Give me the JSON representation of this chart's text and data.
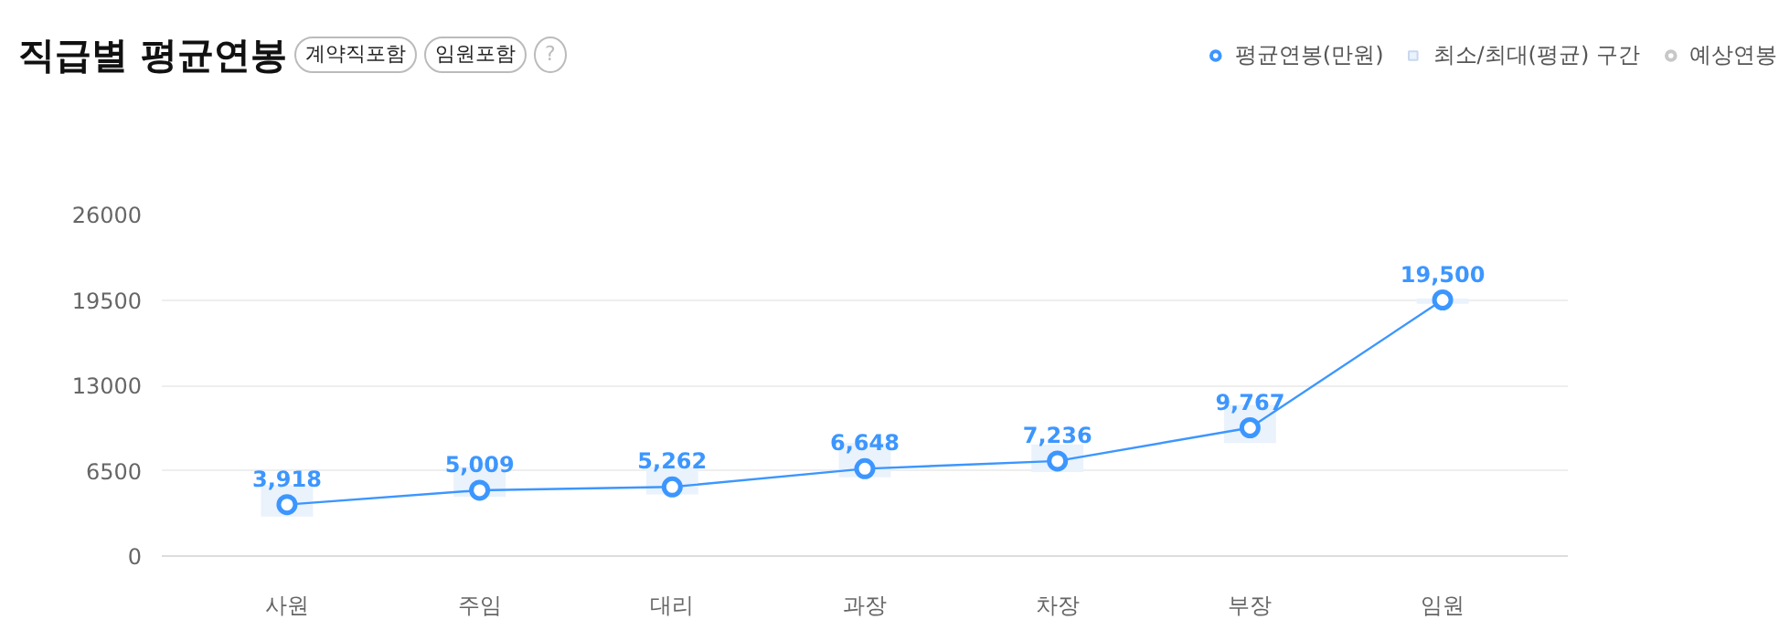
{
  "chart_data": {
    "type": "line",
    "title": "직급별 평균연봉",
    "annotations": [
      "계약직포함",
      "임원포함",
      "?"
    ],
    "categories": [
      "사원",
      "주임",
      "대리",
      "과장",
      "차장",
      "부장",
      "임원"
    ],
    "series": [
      {
        "name": "평균연봉(만원)",
        "color": "#3c96ff",
        "values": [
          3918,
          5009,
          5262,
          6648,
          7236,
          9767,
          19500
        ],
        "value_labels": [
          "3,918",
          "5,009",
          "5,262",
          "6,648",
          "7,236",
          "9,767",
          "19,500"
        ]
      },
      {
        "name": "최소/최대(평균) 구간",
        "type": "bar",
        "color": "#eaf2fc",
        "base": [
          3000,
          4500,
          4700,
          6000,
          6400,
          8600,
          19200
        ],
        "values": [
          2400,
          2300,
          2100,
          2600,
          2100,
          2900,
          400
        ]
      },
      {
        "name": "예상연봉",
        "color": "#c8c8c8",
        "values": [
          null,
          null,
          null,
          null,
          null,
          null,
          null
        ]
      }
    ],
    "ylim": [
      0,
      26000
    ],
    "yticks": [
      0,
      6500,
      13000,
      19500,
      26000
    ],
    "grid": "y",
    "legend": "top right",
    "marker": "circle"
  }
}
